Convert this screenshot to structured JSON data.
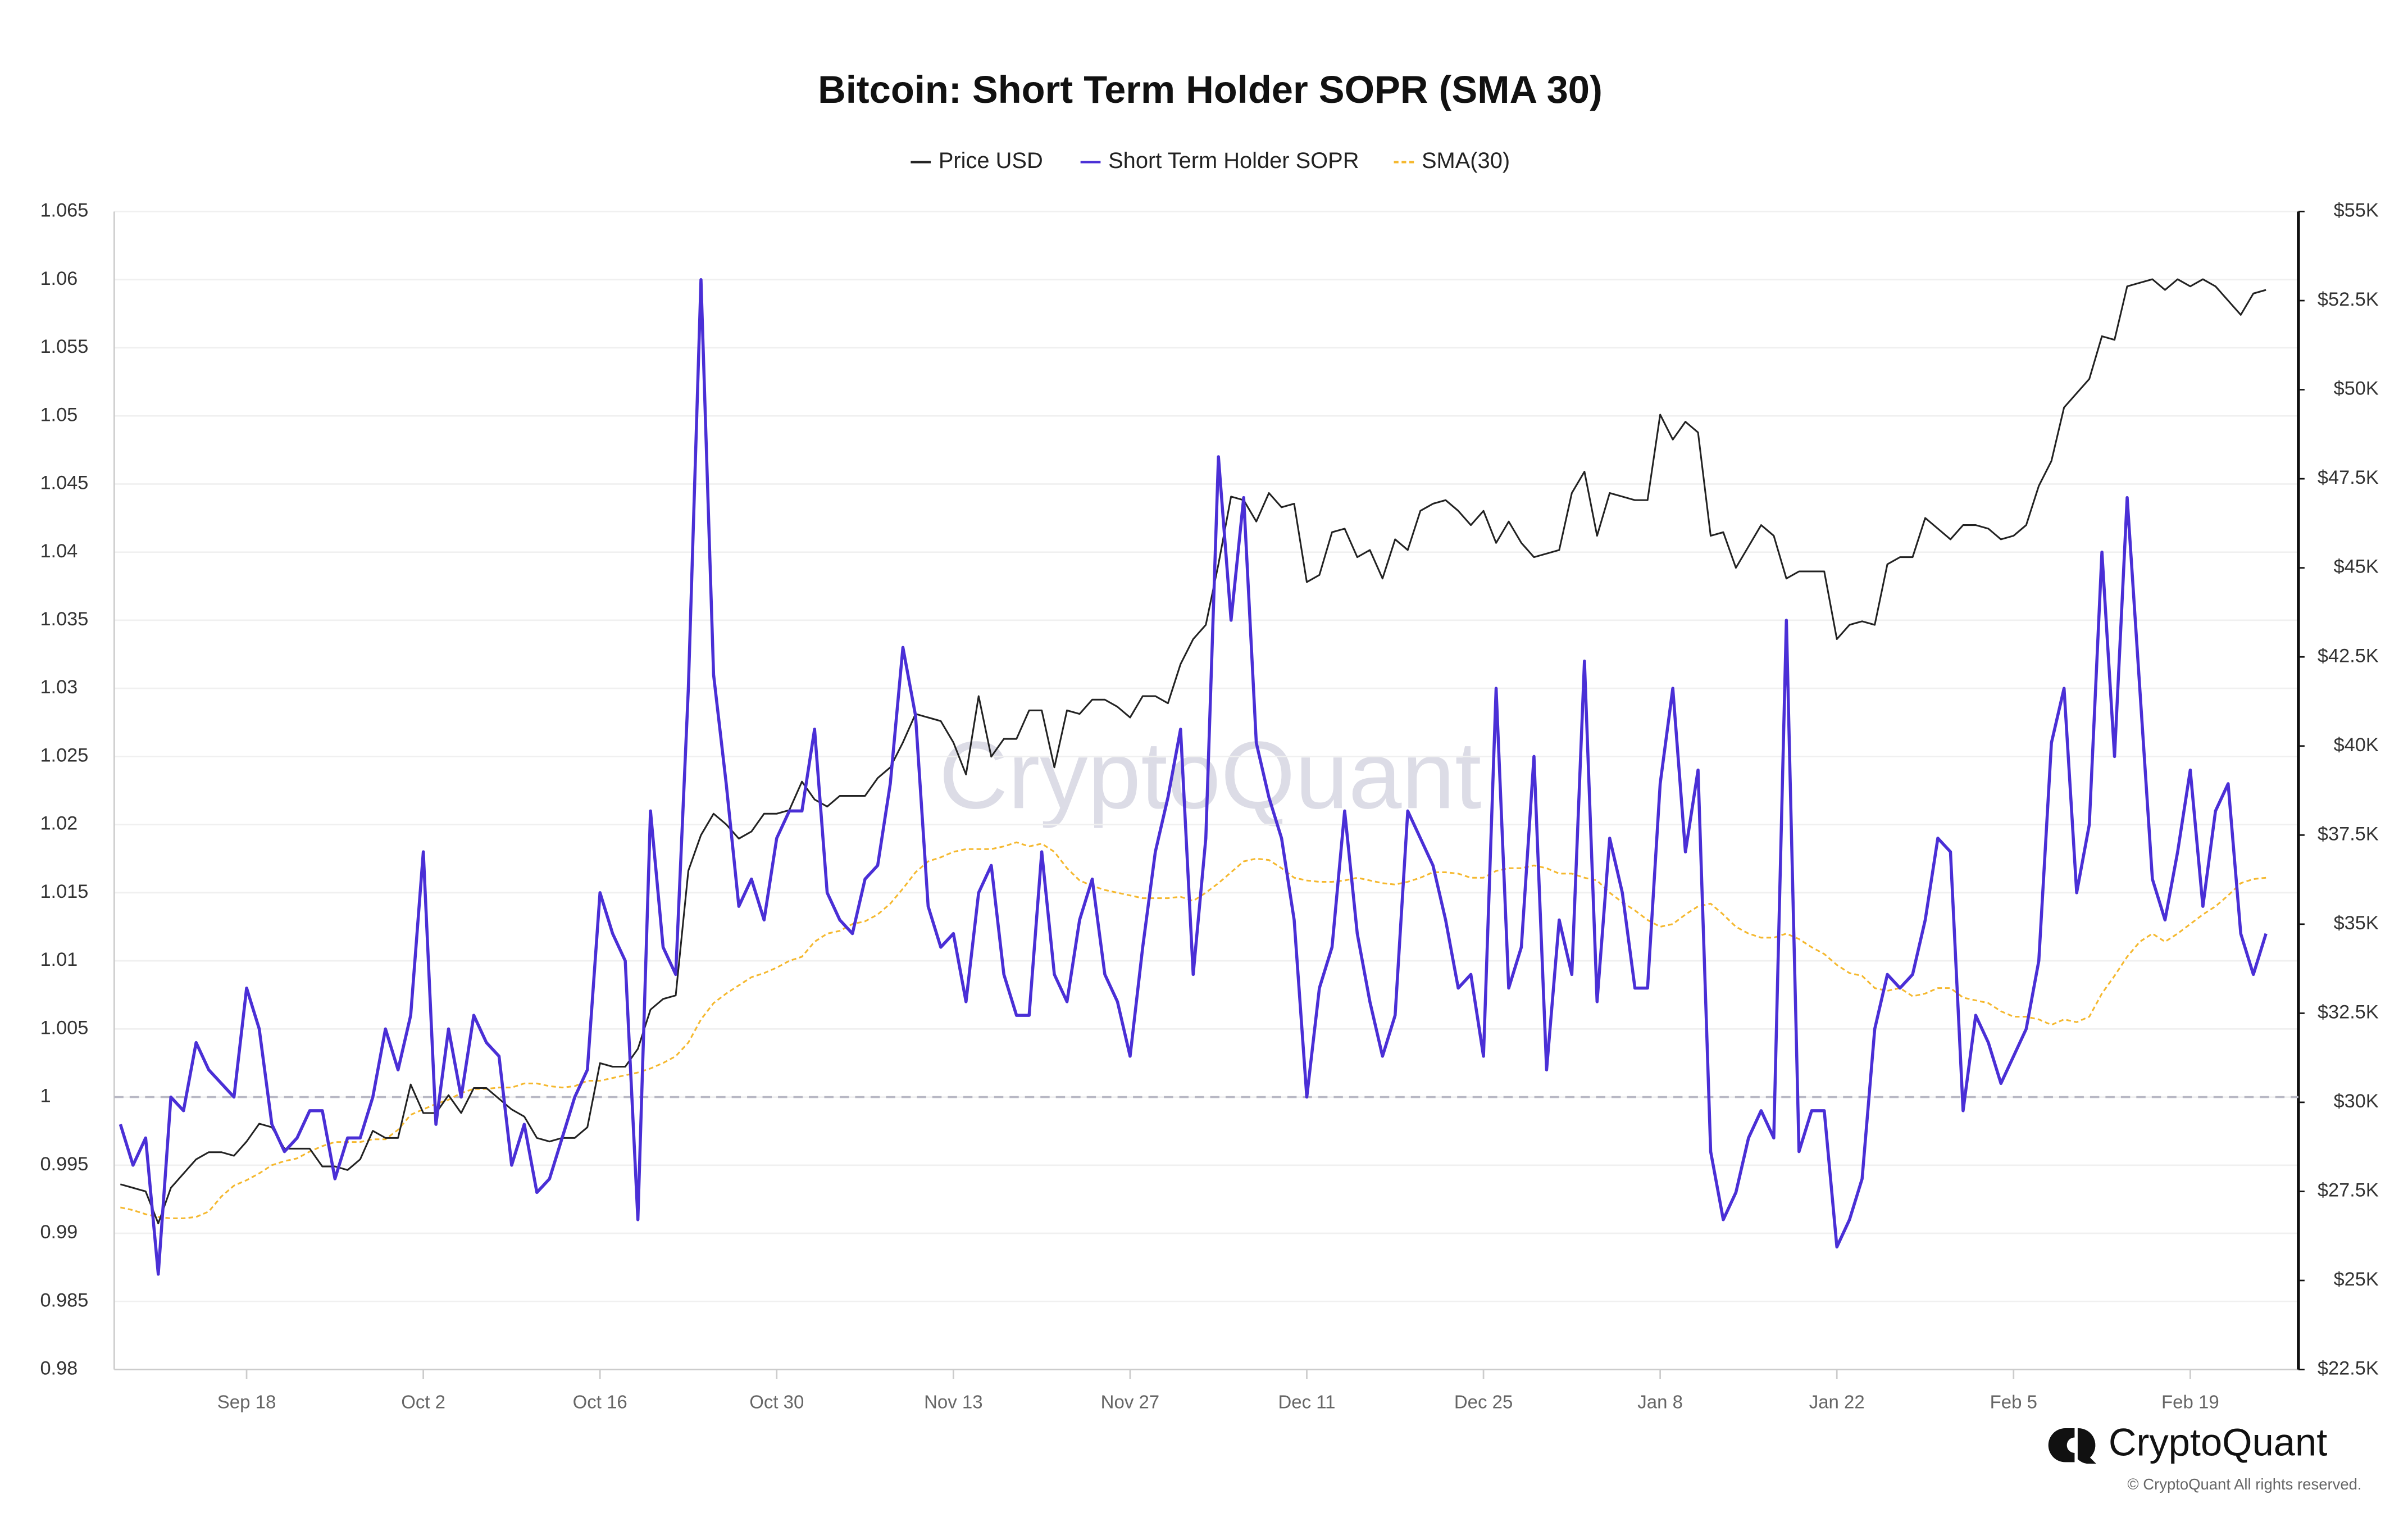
{
  "chart_data": {
    "type": "line",
    "title": "Bitcoin: Short Term Holder SOPR (SMA 30)",
    "watermark": "CryptoQuant",
    "logo_text": "CryptoQuant",
    "copyright": "© CryptoQuant All rights reserved.",
    "categories": [
      "Sep 8",
      "Sep 9",
      "Sep 10",
      "Sep 11",
      "Sep 12",
      "Sep 13",
      "Sep 14",
      "Sep 15",
      "Sep 16",
      "Sep 17",
      "Sep 18",
      "Sep 19",
      "Sep 20",
      "Sep 21",
      "Sep 22",
      "Sep 23",
      "Sep 24",
      "Sep 25",
      "Sep 26",
      "Sep 27",
      "Sep 28",
      "Sep 29",
      "Sep 30",
      "Oct 1",
      "Oct 2",
      "Oct 3",
      "Oct 4",
      "Oct 5",
      "Oct 6",
      "Oct 7",
      "Oct 8",
      "Oct 9",
      "Oct 10",
      "Oct 11",
      "Oct 12",
      "Oct 13",
      "Oct 14",
      "Oct 15",
      "Oct 16",
      "Oct 17",
      "Oct 18",
      "Oct 19",
      "Oct 20",
      "Oct 21",
      "Oct 22",
      "Oct 23",
      "Oct 24",
      "Oct 25",
      "Oct 26",
      "Oct 27",
      "Oct 28",
      "Oct 29",
      "Oct 30",
      "Oct 31",
      "Nov 1",
      "Nov 2",
      "Nov 3",
      "Nov 4",
      "Nov 5",
      "Nov 6",
      "Nov 7",
      "Nov 8",
      "Nov 9",
      "Nov 10",
      "Nov 11",
      "Nov 12",
      "Nov 13",
      "Nov 14",
      "Nov 15",
      "Nov 16",
      "Nov 17",
      "Nov 18",
      "Nov 19",
      "Nov 20",
      "Nov 21",
      "Nov 22",
      "Nov 23",
      "Nov 24",
      "Nov 25",
      "Nov 26",
      "Nov 27",
      "Nov 28",
      "Nov 29",
      "Nov 30",
      "Dec 1",
      "Dec 2",
      "Dec 3",
      "Dec 4",
      "Dec 5",
      "Dec 6",
      "Dec 7",
      "Dec 8",
      "Dec 9",
      "Dec 10",
      "Dec 11",
      "Dec 12",
      "Dec 13",
      "Dec 14",
      "Dec 15",
      "Dec 16",
      "Dec 17",
      "Dec 18",
      "Dec 19",
      "Dec 20",
      "Dec 21",
      "Dec 22",
      "Dec 23",
      "Dec 24",
      "Dec 25",
      "Dec 26",
      "Dec 27",
      "Dec 28",
      "Dec 29",
      "Dec 30",
      "Dec 31",
      "Jan 1",
      "Jan 2",
      "Jan 3",
      "Jan 4",
      "Jan 5",
      "Jan 6",
      "Jan 7",
      "Jan 8",
      "Jan 9",
      "Jan 10",
      "Jan 11",
      "Jan 12",
      "Jan 13",
      "Jan 14",
      "Jan 15",
      "Jan 16",
      "Jan 17",
      "Jan 18",
      "Jan 19",
      "Jan 20",
      "Jan 21",
      "Jan 22",
      "Jan 23",
      "Jan 24",
      "Jan 25",
      "Jan 26",
      "Jan 27",
      "Jan 28",
      "Jan 29",
      "Jan 30",
      "Jan 31",
      "Feb 1",
      "Feb 2",
      "Feb 3",
      "Feb 4",
      "Feb 5",
      "Feb 6",
      "Feb 7",
      "Feb 8",
      "Feb 9",
      "Feb 10",
      "Feb 11",
      "Feb 12",
      "Feb 13",
      "Feb 14",
      "Feb 15",
      "Feb 16",
      "Feb 17",
      "Feb 18",
      "Feb 19",
      "Feb 20",
      "Feb 21",
      "Feb 22",
      "Feb 23",
      "Feb 24",
      "Feb 25"
    ],
    "xticks": [
      "Sep 18",
      "Oct 2",
      "Oct 16",
      "Oct 30",
      "Nov 13",
      "Nov 27",
      "Dec 11",
      "Dec 25",
      "Jan 8",
      "Jan 22",
      "Feb 5",
      "Feb 19"
    ],
    "ylim": [
      0.98,
      1.065
    ],
    "yticks": [
      0.98,
      0.985,
      0.99,
      0.995,
      1,
      1.005,
      1.01,
      1.015,
      1.02,
      1.025,
      1.03,
      1.035,
      1.04,
      1.045,
      1.05,
      1.055,
      1.06,
      1.065
    ],
    "y2lim": [
      22500,
      55000
    ],
    "y2ticks": [
      {
        "value": 22500,
        "label": "$22.5K"
      },
      {
        "value": 25000,
        "label": "$25K"
      },
      {
        "value": 27500,
        "label": "$27.5K"
      },
      {
        "value": 30000,
        "label": "$30K"
      },
      {
        "value": 32500,
        "label": "$32.5K"
      },
      {
        "value": 35000,
        "label": "$35K"
      },
      {
        "value": 37500,
        "label": "$37.5K"
      },
      {
        "value": 40000,
        "label": "$40K"
      },
      {
        "value": 42500,
        "label": "$42.5K"
      },
      {
        "value": 45000,
        "label": "$45K"
      },
      {
        "value": 47500,
        "label": "$47.5K"
      },
      {
        "value": 50000,
        "label": "$50K"
      },
      {
        "value": 52500,
        "label": "$52.5K"
      },
      {
        "value": 55000,
        "label": "$55K"
      }
    ],
    "reference_line": 1,
    "grid": true,
    "legend": "top",
    "series": [
      {
        "name": "Price USD",
        "color": "#222222",
        "axis": "y2",
        "values": [
          27700,
          27600,
          27500,
          26600,
          27600,
          28000,
          28400,
          28600,
          28600,
          28500,
          28900,
          29400,
          29300,
          28700,
          28700,
          28700,
          28200,
          28200,
          28100,
          28400,
          29200,
          29000,
          29000,
          30500,
          29700,
          29700,
          30200,
          29700,
          30400,
          30400,
          30100,
          29800,
          29600,
          29000,
          28900,
          29000,
          29000,
          29300,
          31100,
          31000,
          31000,
          31500,
          32600,
          32900,
          33000,
          36500,
          37500,
          38100,
          37800,
          37400,
          37600,
          38100,
          38100,
          38200,
          39000,
          38500,
          38300,
          38600,
          38600,
          38600,
          39100,
          39400,
          40100,
          40900,
          40800,
          40700,
          40100,
          39200,
          41400,
          39700,
          40200,
          40200,
          41000,
          41000,
          39400,
          41000,
          40900,
          41300,
          41300,
          41100,
          40800,
          41400,
          41400,
          41200,
          42300,
          43000,
          43400,
          45100,
          47000,
          46900,
          46300,
          47100,
          46700,
          46800,
          44600,
          44800,
          46000,
          46100,
          45300,
          45500,
          44700,
          45800,
          45500,
          46600,
          46800,
          46900,
          46600,
          46200,
          46600,
          45700,
          46300,
          45700,
          45300,
          45400,
          45500,
          47100,
          47700,
          45900,
          47100,
          47000,
          46900,
          46900,
          49300,
          48600,
          49100,
          48800,
          45900,
          46000,
          45000,
          45600,
          46200,
          45900,
          44700,
          44900,
          44900,
          44900,
          43000,
          43400,
          43500,
          43400,
          45100,
          45300,
          45300,
          46400,
          46100,
          45800,
          46200,
          46200,
          46100,
          45800,
          45900,
          46200,
          47300,
          48000,
          49500,
          49900,
          50300,
          51500,
          51400,
          52900,
          53000,
          53100,
          52800,
          53100,
          52900,
          53100,
          52900,
          52500,
          52100,
          52700,
          52800
        ]
      },
      {
        "name": "Short Term Holder SOPR",
        "color": "#4a2fd6",
        "values": [
          0.998,
          0.995,
          0.997,
          0.987,
          1.0,
          0.999,
          1.004,
          1.002,
          1.001,
          1.0,
          1.008,
          1.005,
          0.998,
          0.996,
          0.997,
          0.999,
          0.999,
          0.994,
          0.997,
          0.997,
          1.0,
          1.005,
          1.002,
          1.006,
          1.018,
          0.998,
          1.005,
          1.0,
          1.006,
          1.004,
          1.003,
          0.995,
          0.998,
          0.993,
          0.994,
          0.997,
          1.0,
          1.002,
          1.015,
          1.012,
          1.01,
          0.991,
          1.021,
          1.011,
          1.009,
          1.03,
          1.06,
          1.031,
          1.023,
          1.014,
          1.016,
          1.013,
          1.019,
          1.021,
          1.021,
          1.027,
          1.015,
          1.013,
          1.012,
          1.016,
          1.017,
          1.023,
          1.033,
          1.028,
          1.014,
          1.011,
          1.012,
          1.007,
          1.015,
          1.017,
          1.009,
          1.006,
          1.006,
          1.018,
          1.009,
          1.007,
          1.013,
          1.016,
          1.009,
          1.007,
          1.003,
          1.011,
          1.018,
          1.022,
          1.027,
          1.009,
          1.019,
          1.047,
          1.035,
          1.044,
          1.026,
          1.022,
          1.019,
          1.013,
          1.0,
          1.008,
          1.011,
          1.021,
          1.012,
          1.007,
          1.003,
          1.006,
          1.021,
          1.019,
          1.017,
          1.013,
          1.008,
          1.009,
          1.003,
          1.03,
          1.008,
          1.011,
          1.025,
          1.002,
          1.013,
          1.009,
          1.032,
          1.007,
          1.019,
          1.015,
          1.008,
          1.008,
          1.023,
          1.03,
          1.018,
          1.024,
          0.996,
          0.991,
          0.993,
          0.997,
          0.999,
          0.997,
          1.035,
          0.996,
          0.999,
          0.999,
          0.989,
          0.991,
          0.994,
          1.005,
          1.009,
          1.008,
          1.009,
          1.013,
          1.019,
          1.018,
          0.999,
          1.006,
          1.004,
          1.001,
          1.003,
          1.005,
          1.01,
          1.026,
          1.03,
          1.015,
          1.02,
          1.04,
          1.025,
          1.044,
          1.03,
          1.016,
          1.013,
          1.018,
          1.024,
          1.014,
          1.021,
          1.023,
          1.012,
          1.009,
          1.012
        ]
      },
      {
        "name": "SMA(30)",
        "color": "#f5b82e",
        "dashed": true,
        "values": [
          0.9919,
          0.9917,
          0.9914,
          0.9912,
          0.9911,
          0.9911,
          0.9912,
          0.9916,
          0.9927,
          0.9935,
          0.9939,
          0.9944,
          0.995,
          0.9953,
          0.9955,
          0.996,
          0.9964,
          0.9967,
          0.9967,
          0.9967,
          0.9969,
          0.9969,
          0.9976,
          0.9987,
          0.9991,
          0.9995,
          0.9998,
          1.0003,
          1.0006,
          1.0006,
          1.0007,
          1.0007,
          1.001,
          1.001,
          1.0008,
          1.0007,
          1.0008,
          1.0012,
          1.0012,
          1.0014,
          1.0016,
          1.0018,
          1.0021,
          1.0025,
          1.003,
          1.004,
          1.0057,
          1.0069,
          1.0076,
          1.0082,
          1.0088,
          1.0091,
          1.0095,
          1.01,
          1.0103,
          1.0114,
          1.012,
          1.0122,
          1.0127,
          1.0129,
          1.0134,
          1.0142,
          1.0153,
          1.0165,
          1.0173,
          1.0176,
          1.018,
          1.0182,
          1.0182,
          1.0182,
          1.0184,
          1.0187,
          1.0184,
          1.0186,
          1.018,
          1.0168,
          1.0159,
          1.0155,
          1.0152,
          1.015,
          1.0148,
          1.0146,
          1.0146,
          1.0146,
          1.0147,
          1.0144,
          1.015,
          1.0157,
          1.0165,
          1.0173,
          1.0175,
          1.0174,
          1.0168,
          1.0161,
          1.0159,
          1.0158,
          1.0158,
          1.0159,
          1.0161,
          1.0159,
          1.0157,
          1.0156,
          1.0158,
          1.0161,
          1.0165,
          1.0165,
          1.0164,
          1.0161,
          1.0161,
          1.0166,
          1.0168,
          1.0168,
          1.017,
          1.0168,
          1.0164,
          1.0164,
          1.0161,
          1.0159,
          1.015,
          1.0143,
          1.0137,
          1.013,
          1.0125,
          1.0127,
          1.0134,
          1.014,
          1.0142,
          1.0134,
          1.0125,
          1.012,
          1.0117,
          1.0117,
          1.012,
          1.0116,
          1.011,
          1.0105,
          1.0097,
          1.0091,
          1.0089,
          1.008,
          1.0078,
          1.008,
          1.0074,
          1.0076,
          1.008,
          1.008,
          1.0073,
          1.0071,
          1.0069,
          1.0063,
          1.0059,
          1.0059,
          1.0057,
          1.0053,
          1.0057,
          1.0055,
          1.0059,
          1.0076,
          1.0089,
          1.0103,
          1.0114,
          1.012,
          1.0114,
          1.012,
          1.0127,
          1.0134,
          1.014,
          1.0148,
          1.0157,
          1.016,
          1.0161
        ]
      }
    ]
  }
}
